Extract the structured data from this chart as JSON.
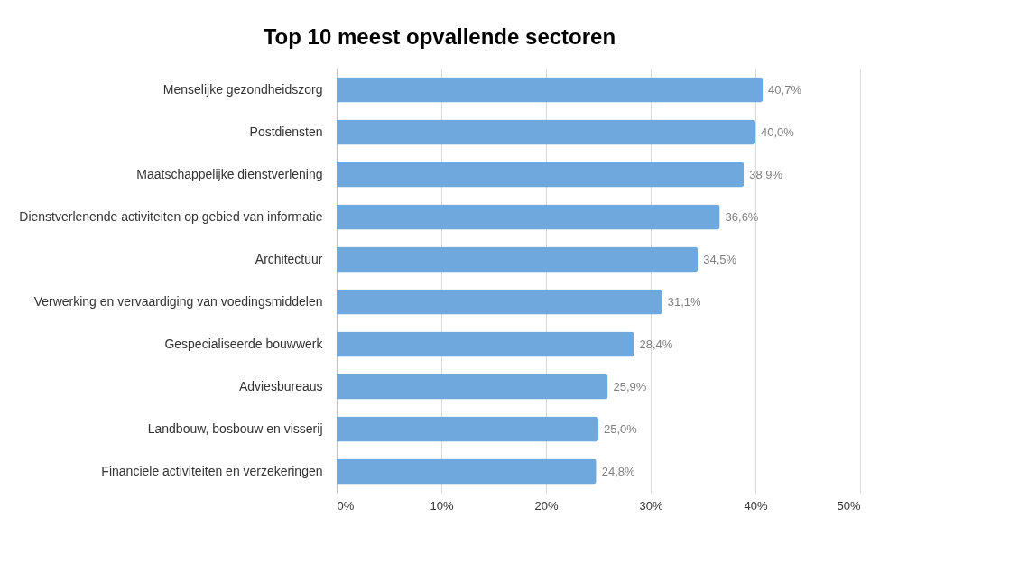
{
  "chart_data": {
    "type": "bar",
    "orientation": "horizontal",
    "title": "Top 10 meest opvallende sectoren",
    "categories": [
      "Menselijke gezondheidszorg",
      "Postdiensten",
      "Maatschappelijke dienstverlening",
      "Dienstverlenende activiteiten op gebied van informatie",
      "Architectuur",
      "Verwerking en vervaardiging van voedingsmiddelen",
      "Gespecialiseerde bouwwerk",
      "Adviesbureaus",
      "Landbouw, bosbouw en visserij",
      "Financiele activiteiten en verzekeringen"
    ],
    "values": [
      40.7,
      40.0,
      38.9,
      36.6,
      34.5,
      31.1,
      28.4,
      25.9,
      25.0,
      24.8
    ],
    "value_labels": [
      "40,7%",
      "40,0%",
      "38,9%",
      "36,6%",
      "34,5%",
      "31,1%",
      "28,4%",
      "25,9%",
      "25,0%",
      "24,8%"
    ],
    "color": "#6fa8dc",
    "xlim": [
      0,
      50
    ],
    "xticks": [
      {
        "value": 0,
        "label": "0%"
      },
      {
        "value": 10,
        "label": "10%"
      },
      {
        "value": 20,
        "label": "20%"
      },
      {
        "value": 30,
        "label": "30%"
      },
      {
        "value": 40,
        "label": "40%"
      },
      {
        "value": 50,
        "label": "50%"
      }
    ],
    "grid": "x"
  }
}
